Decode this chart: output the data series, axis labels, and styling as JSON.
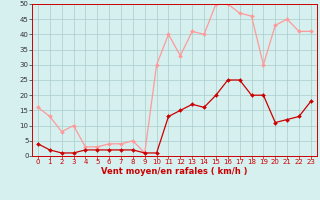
{
  "x": [
    0,
    1,
    2,
    3,
    4,
    5,
    6,
    7,
    8,
    9,
    10,
    11,
    12,
    13,
    14,
    15,
    16,
    17,
    18,
    19,
    20,
    21,
    22,
    23
  ],
  "avg_wind": [
    4,
    2,
    1,
    1,
    2,
    2,
    2,
    2,
    2,
    1,
    1,
    13,
    15,
    17,
    16,
    20,
    25,
    25,
    20,
    20,
    11,
    12,
    13,
    18
  ],
  "gusts": [
    16,
    13,
    8,
    10,
    3,
    3,
    4,
    4,
    5,
    1,
    30,
    40,
    33,
    41,
    40,
    50,
    50,
    47,
    46,
    30,
    43,
    45,
    41,
    41
  ],
  "avg_color": "#cc0000",
  "gust_color": "#ff9999",
  "bg_color": "#d6f0f0",
  "grid_color": "#aacccc",
  "xlabel": "Vent moyen/en rafales ( km/h )",
  "ylim": [
    0,
    50
  ],
  "yticks": [
    0,
    5,
    10,
    15,
    20,
    25,
    30,
    35,
    40,
    45,
    50
  ],
  "xticks": [
    0,
    1,
    2,
    3,
    4,
    5,
    6,
    7,
    8,
    9,
    10,
    11,
    12,
    13,
    14,
    15,
    16,
    17,
    18,
    19,
    20,
    21,
    22,
    23
  ],
  "xlabel_color": "#cc0000",
  "tick_fontsize": 5.0,
  "xlabel_fontsize": 6.0,
  "line_width": 0.9,
  "marker_size": 2.0
}
